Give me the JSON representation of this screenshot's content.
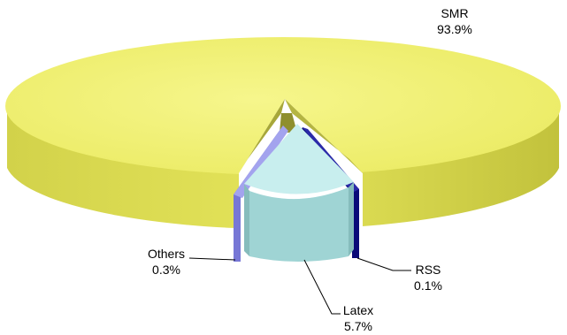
{
  "chart_data": {
    "type": "pie",
    "style": "3d-exploded",
    "title": "",
    "legend": "none",
    "slices": [
      {
        "name": "SMR",
        "value": 93.9,
        "label": "93.9%",
        "color": "#f0f060"
      },
      {
        "name": "Latex",
        "value": 5.7,
        "label": "5.7%",
        "color": "#b8e8e8"
      },
      {
        "name": "Others",
        "value": 0.3,
        "label": "0.3%",
        "color": "#8080dd"
      },
      {
        "name": "RSS",
        "value": 0.1,
        "label": "0.1%",
        "color": "#101080"
      }
    ]
  }
}
